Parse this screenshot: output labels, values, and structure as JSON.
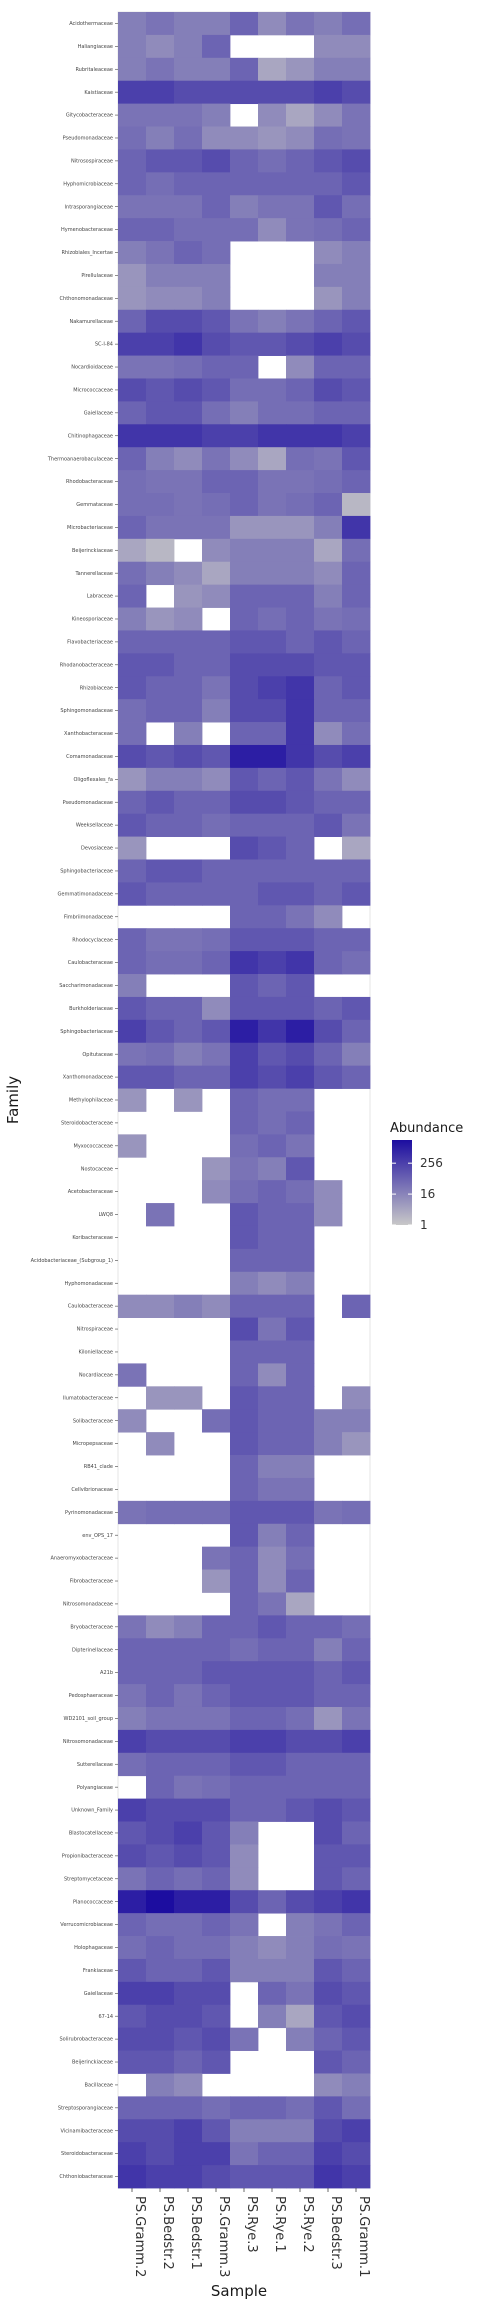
{
  "chart_data": {
    "type": "heatmap",
    "xlabel": "Sample",
    "ylabel": "Family",
    "samples": [
      "PS.Gramm.2",
      "PS.Bedstr.2",
      "PS.Bedstr.1",
      "PS.Gramm.3",
      "PS.Rye.3",
      "PS.Rye.1",
      "PS.Rye.2",
      "PS.Bedstr.3",
      "PS.Gramm.1"
    ],
    "families": [
      "Acidothermaceae",
      "Haliangiaceae",
      "Rubritaleaceae",
      "Kaistiaceae",
      "Gitycobacteraceae",
      "Pseudomonadaceae",
      "Nitrosospiraceae",
      "Hyphomicrobiaceae",
      "Intrasporangiaceae",
      "Hymenobacteraceae",
      "Rhizobiales_Incertae",
      "Pirellulaceae",
      "Chthonomonadaceae",
      "Nakamurellaceae",
      "SC-I-84",
      "Nocardioidaceae",
      "Micrococcaceae",
      "Gaiellaceae",
      "Chitinophagaceae",
      "Thermoanaerobaculaceae",
      "Rhodobacteraceae",
      "Gemmataceae",
      "Microbacteriaceae",
      "Beijerinckiaceae",
      "Tannerellaceae",
      "Labraceae",
      "Kineosporiaceae",
      "Flavobacteriaceae",
      "Rhodanobacteraceae",
      "Rhizobiaceae",
      "Sphingomonadaceae",
      "Xanthobacteraceae",
      "Comamonadaceae",
      "Oligoflexales_fa",
      "Pseudomonadaceae",
      "Weeksellaceae",
      "Devosiaceae",
      "Sphingobacteriaceae",
      "Gemmatimonadaceae",
      "Fimbriimonadaceae",
      "Rhodocyclaceae",
      "Caulobacteraceae",
      "Saccharimonadaceae",
      "Burkholderiaceae",
      "Sphingobacteriaceae",
      "Opitutaceae",
      "Xanthomonadaceae",
      "Methylophilaceae",
      "Steroidobacteraceae",
      "Myxococcaceae",
      "Nostocaceae",
      "Acetobacteraceae",
      "LWQ8",
      "Koribacteraceae",
      "Acidobacteriaceae_(Subgroup_1)",
      "Hyphomonadaceae",
      "Caulobacteraceae",
      "Nitrospiraceae",
      "Kiloniellaceae",
      "Nocardiaceae",
      "Ilumatobacteraceae",
      "Solibacteraceae",
      "Micropepsaceae",
      "RB41_clade",
      "Cellvibrionaceae",
      "Pyrinomonadaceae",
      "env_OPS_17",
      "Anaeromyxobacteraceae",
      "Fibrobacteraceae",
      "Nitrosomonadaceae",
      "Bryobacteraceae",
      "Dipterinellaceae",
      "A21b",
      "Pedosphaeraceae",
      "WD2101_soil_group",
      "Nitrosomonadaceae",
      "Sutterellaceae",
      "Polyangiaceae",
      "Unknown_Family",
      "Blastocatellaceae",
      "Propionibacteraceae",
      "Streptomycetaceae",
      "Planococcaceae",
      "Verrucomicrobiaceae",
      "Holophagaceae",
      "Frankiaceae",
      "Gaiellaceae",
      "67-14",
      "Solirubrobacteraceae",
      "Beijerinckiaceae",
      "Bacillaceae",
      "Streptosporangiaceae",
      "Vicinamibacteraceae",
      "Steroidobacteraceae",
      "Chthoniobacteraceae"
    ],
    "values": [
      [
        20,
        32,
        20,
        20,
        60,
        12,
        32,
        20,
        40
      ],
      [
        20,
        12,
        20,
        60,
        0,
        0,
        0,
        12,
        12
      ],
      [
        20,
        32,
        20,
        20,
        60,
        4,
        8,
        20,
        20
      ],
      [
        256,
        256,
        160,
        160,
        160,
        160,
        160,
        256,
        160
      ],
      [
        32,
        32,
        32,
        20,
        0,
        12,
        4,
        12,
        32
      ],
      [
        40,
        20,
        40,
        12,
        12,
        8,
        12,
        40,
        32
      ],
      [
        60,
        100,
        100,
        160,
        60,
        40,
        60,
        100,
        160
      ],
      [
        60,
        40,
        60,
        60,
        60,
        60,
        60,
        60,
        100
      ],
      [
        32,
        32,
        32,
        60,
        20,
        32,
        32,
        100,
        40
      ],
      [
        60,
        60,
        40,
        40,
        40,
        12,
        32,
        40,
        60
      ],
      [
        20,
        32,
        60,
        40,
        0,
        0,
        0,
        12,
        20
      ],
      [
        8,
        20,
        20,
        20,
        0,
        0,
        0,
        20,
        20
      ],
      [
        8,
        12,
        12,
        20,
        0,
        0,
        0,
        8,
        20
      ],
      [
        60,
        160,
        160,
        100,
        32,
        20,
        32,
        60,
        100
      ],
      [
        256,
        256,
        400,
        160,
        100,
        100,
        160,
        256,
        160
      ],
      [
        32,
        32,
        40,
        60,
        60,
        0,
        12,
        60,
        60
      ],
      [
        160,
        100,
        160,
        100,
        40,
        40,
        60,
        160,
        100
      ],
      [
        60,
        100,
        100,
        40,
        20,
        40,
        40,
        60,
        60
      ],
      [
        400,
        400,
        400,
        256,
        256,
        400,
        400,
        400,
        256
      ],
      [
        60,
        20,
        12,
        32,
        12,
        4,
        40,
        32,
        100
      ],
      [
        40,
        32,
        32,
        60,
        60,
        32,
        32,
        40,
        60
      ],
      [
        40,
        40,
        32,
        40,
        60,
        32,
        40,
        60,
        2
      ],
      [
        60,
        32,
        32,
        32,
        8,
        8,
        8,
        20,
        400
      ],
      [
        4,
        2,
        0,
        12,
        20,
        20,
        20,
        4,
        40
      ],
      [
        40,
        20,
        12,
        4,
        20,
        20,
        20,
        12,
        60
      ],
      [
        60,
        0,
        8,
        12,
        60,
        60,
        60,
        20,
        60
      ],
      [
        20,
        8,
        12,
        0,
        60,
        40,
        60,
        32,
        40
      ],
      [
        60,
        60,
        60,
        60,
        100,
        100,
        60,
        100,
        60
      ],
      [
        100,
        100,
        60,
        60,
        160,
        160,
        160,
        100,
        100
      ],
      [
        100,
        60,
        60,
        32,
        160,
        256,
        400,
        60,
        100
      ],
      [
        40,
        60,
        60,
        20,
        160,
        160,
        400,
        60,
        60
      ],
      [
        40,
        0,
        20,
        0,
        60,
        60,
        400,
        12,
        40
      ],
      [
        160,
        100,
        160,
        100,
        1024,
        1024,
        400,
        160,
        256
      ],
      [
        8,
        20,
        20,
        12,
        100,
        60,
        100,
        32,
        12
      ],
      [
        60,
        100,
        60,
        60,
        160,
        160,
        100,
        60,
        60
      ],
      [
        100,
        60,
        60,
        40,
        60,
        60,
        60,
        100,
        32
      ],
      [
        8,
        0,
        0,
        0,
        160,
        100,
        60,
        0,
        4
      ],
      [
        60,
        100,
        100,
        60,
        60,
        60,
        60,
        60,
        60
      ],
      [
        100,
        60,
        60,
        60,
        60,
        100,
        100,
        60,
        100
      ],
      [
        0,
        0,
        0,
        0,
        60,
        60,
        32,
        12,
        0
      ],
      [
        60,
        32,
        32,
        40,
        100,
        100,
        100,
        60,
        60
      ],
      [
        60,
        40,
        40,
        60,
        400,
        256,
        400,
        60,
        40
      ],
      [
        20,
        0,
        0,
        0,
        100,
        60,
        100,
        0,
        0
      ],
      [
        100,
        60,
        60,
        12,
        100,
        100,
        100,
        60,
        100
      ],
      [
        256,
        100,
        60,
        100,
        1024,
        400,
        1024,
        160,
        60
      ],
      [
        32,
        40,
        20,
        32,
        256,
        100,
        160,
        60,
        20
      ],
      [
        100,
        100,
        60,
        60,
        256,
        160,
        256,
        100,
        60
      ],
      [
        8,
        0,
        8,
        0,
        60,
        40,
        40,
        0,
        0
      ],
      [
        0,
        0,
        0,
        0,
        60,
        40,
        60,
        0,
        0
      ],
      [
        8,
        0,
        0,
        0,
        40,
        60,
        32,
        0,
        0
      ],
      [
        0,
        0,
        0,
        8,
        32,
        20,
        100,
        0,
        0
      ],
      [
        0,
        0,
        0,
        12,
        40,
        60,
        40,
        12,
        0
      ],
      [
        0,
        32,
        0,
        0,
        100,
        60,
        60,
        12,
        0
      ],
      [
        0,
        0,
        0,
        0,
        100,
        60,
        60,
        0,
        0
      ],
      [
        0,
        0,
        0,
        0,
        60,
        60,
        60,
        0,
        0
      ],
      [
        0,
        0,
        0,
        0,
        20,
        12,
        20,
        0,
        0
      ],
      [
        12,
        12,
        20,
        12,
        60,
        60,
        60,
        0,
        60
      ],
      [
        0,
        0,
        0,
        0,
        160,
        32,
        100,
        0,
        0
      ],
      [
        0,
        0,
        0,
        0,
        60,
        60,
        60,
        0,
        0
      ],
      [
        32,
        0,
        0,
        0,
        60,
        12,
        60,
        0,
        0
      ],
      [
        0,
        8,
        8,
        0,
        100,
        60,
        60,
        0,
        12
      ],
      [
        12,
        0,
        0,
        40,
        100,
        60,
        60,
        20,
        20
      ],
      [
        0,
        12,
        0,
        0,
        100,
        60,
        60,
        20,
        8
      ],
      [
        0,
        0,
        0,
        0,
        60,
        20,
        20,
        0,
        0
      ],
      [
        0,
        0,
        0,
        0,
        60,
        32,
        32,
        0,
        0
      ],
      [
        32,
        40,
        40,
        40,
        100,
        100,
        100,
        32,
        40
      ],
      [
        0,
        0,
        0,
        0,
        100,
        20,
        60,
        0,
        0
      ],
      [
        0,
        0,
        0,
        32,
        60,
        12,
        40,
        0,
        0
      ],
      [
        0,
        0,
        0,
        8,
        60,
        12,
        60,
        0,
        0
      ],
      [
        0,
        0,
        0,
        0,
        60,
        32,
        4,
        0,
        0
      ],
      [
        32,
        12,
        20,
        60,
        60,
        100,
        60,
        60,
        40
      ],
      [
        60,
        60,
        60,
        60,
        40,
        60,
        60,
        20,
        60
      ],
      [
        60,
        60,
        60,
        100,
        100,
        100,
        100,
        60,
        100
      ],
      [
        32,
        60,
        32,
        60,
        100,
        100,
        100,
        60,
        60
      ],
      [
        20,
        32,
        32,
        32,
        60,
        60,
        40,
        8,
        32
      ],
      [
        256,
        160,
        160,
        160,
        256,
        256,
        160,
        160,
        256
      ],
      [
        40,
        60,
        60,
        60,
        100,
        100,
        60,
        60,
        60
      ],
      [
        0,
        60,
        32,
        40,
        60,
        60,
        60,
        60,
        60
      ],
      [
        256,
        160,
        160,
        160,
        60,
        60,
        100,
        160,
        100
      ],
      [
        100,
        160,
        256,
        100,
        20,
        0,
        0,
        160,
        60
      ],
      [
        160,
        100,
        160,
        100,
        12,
        0,
        0,
        100,
        100
      ],
      [
        32,
        60,
        40,
        60,
        12,
        0,
        0,
        100,
        60
      ],
      [
        1024,
        2048,
        1024,
        1024,
        160,
        60,
        160,
        256,
        400
      ],
      [
        60,
        40,
        40,
        60,
        32,
        0,
        20,
        32,
        60
      ],
      [
        40,
        60,
        40,
        40,
        20,
        12,
        20,
        40,
        32
      ],
      [
        100,
        60,
        60,
        100,
        20,
        20,
        20,
        100,
        60
      ],
      [
        256,
        256,
        160,
        160,
        0,
        60,
        32,
        160,
        100
      ],
      [
        100,
        160,
        160,
        100,
        0,
        20,
        4,
        100,
        160
      ],
      [
        160,
        160,
        100,
        160,
        32,
        0,
        20,
        60,
        100
      ],
      [
        100,
        100,
        60,
        100,
        0,
        0,
        0,
        100,
        60
      ],
      [
        0,
        20,
        12,
        0,
        0,
        0,
        0,
        12,
        20
      ],
      [
        60,
        60,
        60,
        40,
        60,
        60,
        40,
        100,
        40
      ],
      [
        160,
        160,
        256,
        100,
        20,
        20,
        20,
        160,
        256
      ],
      [
        256,
        160,
        256,
        256,
        32,
        60,
        60,
        256,
        160
      ],
      [
        400,
        256,
        256,
        160,
        100,
        100,
        100,
        400,
        256
      ]
    ],
    "legend": {
      "title": "Abundance",
      "ticks": [
        256,
        16,
        1
      ],
      "position": "right"
    },
    "scale": {
      "type": "log2",
      "low_color": "#c8c8c8",
      "high_color": "#1c0da0",
      "min": 1,
      "max": 2048
    },
    "grid": false
  }
}
